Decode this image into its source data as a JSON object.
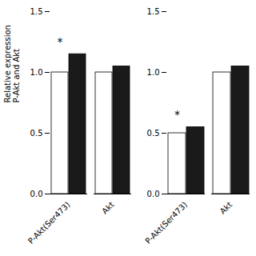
{
  "chart_data": [
    {
      "type": "bar",
      "categories": [
        "P-Akt(Ser473)",
        "Akt"
      ],
      "series": [
        {
          "color": "#ffffff",
          "values": [
            1.0,
            1.0
          ]
        },
        {
          "color": "#1a1a1a",
          "values": [
            1.15,
            1.05
          ]
        }
      ],
      "ylim": [
        0,
        1.5
      ],
      "yticks": [
        {
          "value": 0,
          "label": "0.0"
        },
        {
          "value": 0.5,
          "label": "0.5"
        },
        {
          "value": 1,
          "label": "1.0"
        },
        {
          "value": 1.5,
          "label": "1.5"
        }
      ],
      "ylabel": "Relative expression\nP-Akt and Akt",
      "annotations": [
        {
          "text": "*",
          "category": "P-Akt(Ser473)",
          "series": 0,
          "y": 1.25
        }
      ]
    },
    {
      "type": "bar",
      "categories": [
        "P-Akt(Ser473)",
        "Akt"
      ],
      "series": [
        {
          "color": "#ffffff",
          "values": [
            0.5,
            1.0
          ]
        },
        {
          "color": "#1a1a1a",
          "values": [
            0.55,
            1.05
          ]
        }
      ],
      "ylim": [
        0,
        1.5
      ],
      "yticks": [
        {
          "value": 0,
          "label": "0.0"
        },
        {
          "value": 0.5,
          "label": "0.5"
        },
        {
          "value": 1,
          "label": "1.0"
        },
        {
          "value": 1.5,
          "label": "1.5"
        }
      ],
      "annotations": [
        {
          "text": "*",
          "category": "P-Akt(Ser473)",
          "series": 0,
          "y": 0.65
        }
      ]
    }
  ]
}
